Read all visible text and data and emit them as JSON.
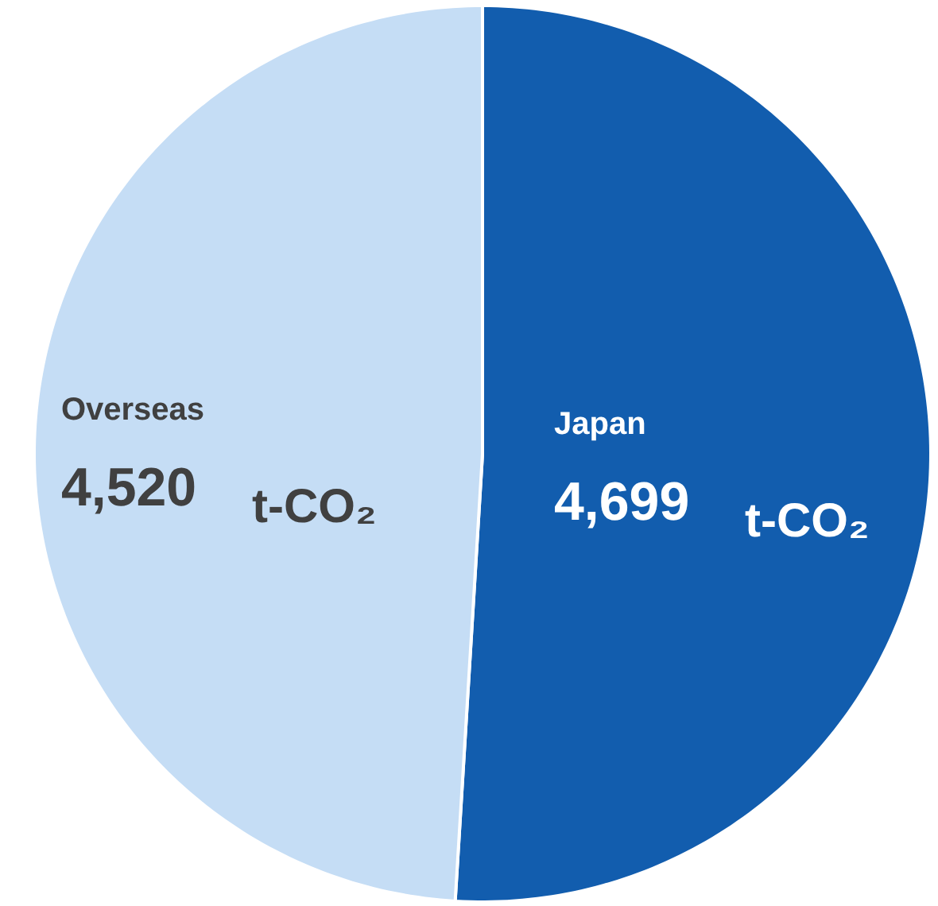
{
  "chart_data": {
    "type": "pie",
    "categories": [
      "Japan",
      "Overseas"
    ],
    "values": [
      4699,
      4520
    ],
    "colors": [
      "#125dae",
      "#c5ddf5"
    ],
    "value_labels": [
      "4,699 t-CO₂",
      "4,520 t-CO₂"
    ]
  }
}
